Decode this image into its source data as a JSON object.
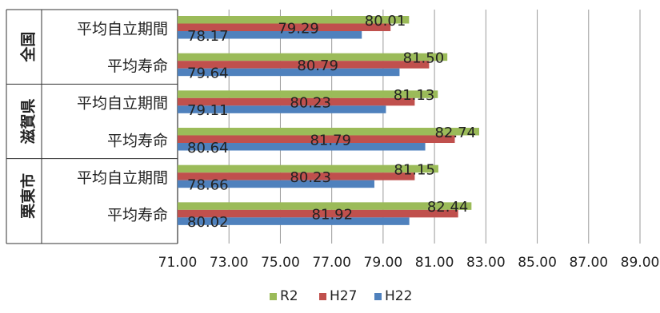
{
  "chart_data": {
    "type": "bar",
    "orientation": "horizontal",
    "groups": [
      {
        "label": "全国",
        "categories": [
          "平均自立期間",
          "平均寿命"
        ]
      },
      {
        "label": "滋賀県",
        "categories": [
          "平均自立期間",
          "平均寿命"
        ]
      },
      {
        "label": "栗東市",
        "categories": [
          "平均自立期間",
          "平均寿命"
        ]
      }
    ],
    "categories": [
      "全国 平均自立期間",
      "全国 平均寿命",
      "滋賀県 平均自立期間",
      "滋賀県 平均寿命",
      "栗東市 平均自立期間",
      "栗東市 平均寿命"
    ],
    "series": [
      {
        "name": "R2",
        "color": "#9bbb59",
        "values": [
          80.01,
          81.5,
          81.13,
          82.74,
          81.15,
          82.44
        ],
        "value_labels": [
          "80.01",
          "81.50",
          "81.13",
          "82.74",
          "81.15",
          "82.44"
        ]
      },
      {
        "name": "H27",
        "color": "#c0504d",
        "values": [
          79.29,
          80.79,
          80.23,
          81.79,
          80.23,
          81.92
        ],
        "value_labels": [
          "79.29",
          "80.79",
          "80.23",
          "81.79",
          "80.23",
          "81.92"
        ]
      },
      {
        "name": "H22",
        "color": "#4f81bd",
        "values": [
          78.17,
          79.64,
          79.11,
          80.64,
          78.66,
          80.02
        ],
        "value_labels": [
          "78.17",
          "79.64",
          "79.11",
          "80.64",
          "78.66",
          "80.02"
        ]
      }
    ],
    "xlim": [
      71,
      89
    ],
    "xticks": [
      "71.00",
      "73.00",
      "75.00",
      "77.00",
      "79.00",
      "81.00",
      "83.00",
      "85.00",
      "87.00",
      "89.00"
    ],
    "grid": true,
    "legend": "bottom",
    "title": "",
    "xlabel": "",
    "ylabel": ""
  }
}
